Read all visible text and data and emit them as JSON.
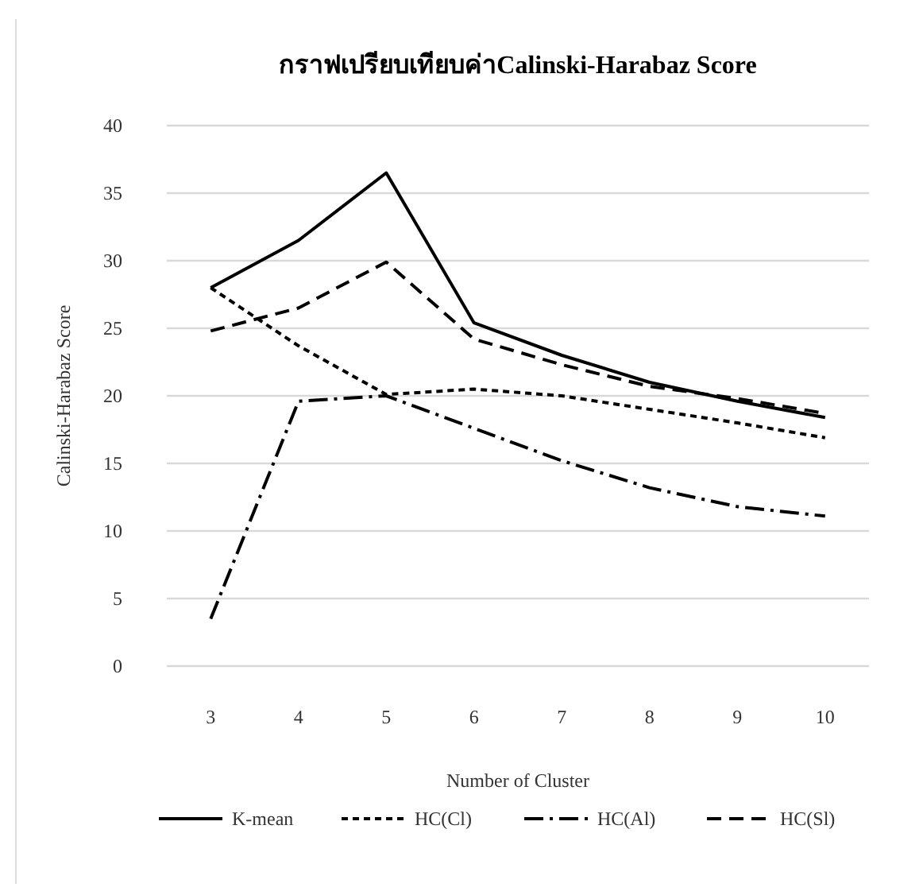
{
  "chart_data": {
    "type": "line",
    "title": "กราฟเปรียบเทียบค่าCalinski-Harabaz Score",
    "xlabel": "Number of Cluster",
    "ylabel": "Calinski-Harabaz Score",
    "categories": [
      "3",
      "4",
      "5",
      "6",
      "7",
      "8",
      "9",
      "10"
    ],
    "ylim": [
      0,
      40
    ],
    "yticks": [
      0,
      5,
      10,
      15,
      20,
      25,
      30,
      35,
      40
    ],
    "grid": "y",
    "legend": "bottom",
    "marker": "none",
    "series": [
      {
        "name": "K-mean",
        "color": "#000000",
        "line_style": "solid",
        "values": [
          28,
          31.5,
          36.5,
          25.4,
          23,
          21,
          19.6,
          18.4
        ]
      },
      {
        "name": "HC(Cl)",
        "color": "#000000",
        "line_style": "dotted",
        "values": [
          28,
          23.7,
          20.1,
          20.5,
          20,
          19,
          18,
          16.9
        ]
      },
      {
        "name": "HC(Al)",
        "color": "#000000",
        "line_style": "dashdot",
        "values": [
          3.5,
          19.6,
          20,
          17.6,
          15.2,
          13.2,
          11.8,
          11.1
        ]
      },
      {
        "name": "HC(Sl)",
        "color": "#000000",
        "line_style": "dashed",
        "values": [
          24.8,
          26.5,
          29.9,
          24.2,
          22.3,
          20.7,
          19.8,
          18.7
        ]
      }
    ]
  }
}
